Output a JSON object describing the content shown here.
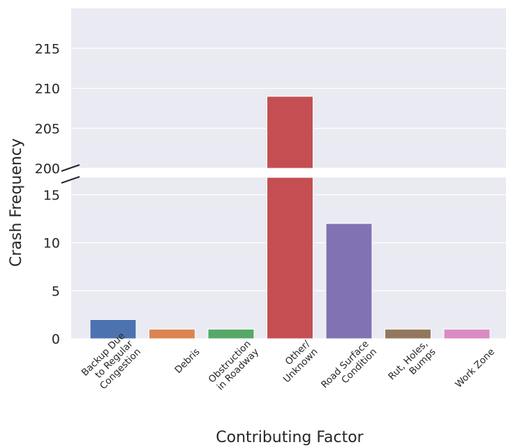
{
  "chart_data": {
    "type": "bar",
    "xlabel": "Contributing Factor",
    "ylabel": "Crash Frequency",
    "categories": [
      "Backup Due to Regular Congestion",
      "Debris",
      "Obstruction in Roadway",
      "Other/ Unknown",
      "Road Surface Condition",
      "Rut, Holes, Bumps",
      "Work Zone"
    ],
    "category_label_lines": [
      [
        "Backup Due",
        "to Regular",
        "Congestion"
      ],
      [
        "Debris"
      ],
      [
        "Obstruction",
        "in Roadway"
      ],
      [
        "Other/",
        "Unknown"
      ],
      [
        "Road Surface",
        "Condition"
      ],
      [
        "Rut, Holes,",
        "Bumps"
      ],
      [
        "Work Zone"
      ]
    ],
    "values": [
      2,
      1,
      1,
      209,
      12,
      1,
      1
    ],
    "colors": [
      "#4c72b0",
      "#dd8452",
      "#55a868",
      "#c44e52",
      "#8172b3",
      "#937860",
      "#da8bc3"
    ],
    "broken_axis": true,
    "upper_panel": {
      "ylim": [
        200,
        220
      ],
      "ticks": [
        200,
        205,
        210,
        215
      ]
    },
    "lower_panel": {
      "ylim": [
        0,
        16.8
      ],
      "ticks": [
        0,
        5,
        10,
        15
      ]
    },
    "grid": true,
    "background": "#eaeaf2"
  }
}
